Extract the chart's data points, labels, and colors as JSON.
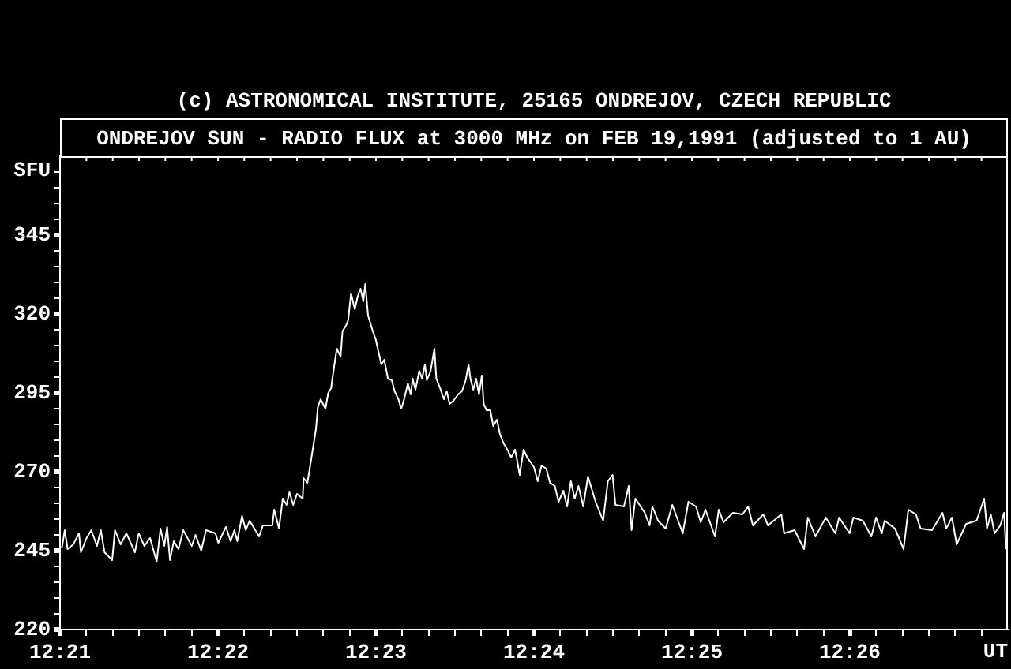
{
  "chart_data": {
    "type": "line",
    "title": "ONDREJOV SUN - RADIO FLUX at 3000 MHz on FEB 19,1991 (adjusted to 1 AU)",
    "annotations": [
      "(c) ASTRONOMICAL INSTITUTE, 25165 ONDREJOV, CZECH REPUBLIC"
    ],
    "xlabel": "UT",
    "ylabel": "SFU",
    "color": "#ffffff",
    "x": [
      12.3502,
      12.3505,
      12.3508,
      12.3514,
      12.352,
      12.3522,
      12.3528,
      12.3533,
      12.3539,
      12.3543,
      12.3547,
      12.3555,
      12.3558,
      12.3564,
      12.357,
      12.3579,
      12.3583,
      12.3589,
      12.3595,
      12.3602,
      12.3606,
      12.361,
      12.3613,
      12.3616,
      12.362,
      12.3625,
      12.363,
      12.3639,
      12.3643,
      12.3649,
      12.3654,
      12.3664,
      12.3667,
      12.3675,
      12.368,
      12.3684,
      12.3687,
      12.3692,
      12.3696,
      12.37,
      12.371,
      12.3714,
      12.3724,
      12.3726,
      12.3731,
      12.3735,
      12.3739,
      12.3742,
      12.3746,
      12.375,
      12.3756,
      12.3757,
      12.3761,
      12.3765,
      12.377,
      12.3772,
      12.3775,
      12.378,
      12.3783,
      12.3786,
      12.3789,
      12.3792,
      12.3796,
      12.3798,
      12.3802,
      12.3804,
      12.3807,
      12.3811,
      12.3814,
      12.3817,
      12.382,
      12.3822,
      12.3825,
      12.383,
      12.3833,
      12.3836,
      12.3839,
      12.3842,
      12.3846,
      12.385,
      12.3853,
      12.3857,
      12.386,
      12.3863,
      12.3867,
      12.387,
      12.3872,
      12.3875,
      12.3879,
      12.3882,
      12.3885,
      12.3887,
      12.3891,
      12.3895,
      12.3897,
      12.3901,
      12.3905,
      12.3908,
      12.3911,
      12.3915,
      12.392,
      12.3924,
      12.3928,
      12.3931,
      12.3933,
      12.3936,
      12.3939,
      12.3942,
      12.3945,
      12.3947,
      12.395,
      12.3954,
      12.3957,
      12.3961,
      12.3964,
      12.3968,
      12.3972,
      12.3976,
      12.398,
      12.3982,
      12.3985,
      12.3989,
      12.3993,
      12.4,
      12.4004,
      12.4008,
      12.4013,
      12.4017,
      12.4022,
      12.4026,
      12.4031,
      12.4035,
      12.4039,
      12.4043,
      12.4047,
      12.4052,
      12.4057,
      12.4065,
      12.4073,
      12.4078,
      12.4083,
      12.4086,
      12.4095,
      12.41,
      12.4103,
      12.4107,
      12.4117,
      12.4122,
      12.4125,
      12.4131,
      12.4139,
      12.4146,
      12.4157,
      12.4163,
      12.4171,
      12.4176,
      12.4181,
      12.4191,
      12.4195,
      12.42,
      12.421,
      12.422,
      12.4226,
      12.4231,
      12.4242,
      12.4247,
      12.4261,
      12.4264,
      12.4275,
      12.4285,
      12.4289,
      12.4297,
      12.4308,
      12.4318,
      12.4322,
      12.4333,
      12.4337,
      12.4347,
      12.4356,
      12.4361,
      12.4367,
      12.437,
      12.4381,
      12.439,
      12.4395,
      12.4403,
      12.4408,
      12.442,
      12.4431,
      12.4435,
      12.4441,
      12.4446,
      12.4456,
      12.4467,
      12.4471,
      12.4475,
      12.4478,
      12.4482,
      12.4486,
      12.4492,
      12.4496,
      12.4498
    ],
    "values": [
      246,
      251.5,
      245.5,
      247,
      250.5,
      244.5,
      249,
      251.5,
      246.5,
      251.5,
      244.5,
      242,
      251.5,
      247,
      250.5,
      244.5,
      250.5,
      246.5,
      249,
      241.5,
      252,
      246.5,
      252.5,
      242,
      248,
      245.5,
      251.5,
      246.5,
      250,
      245,
      251.5,
      250.5,
      247.5,
      252.5,
      248,
      251.5,
      248,
      256,
      251.5,
      254.5,
      249.5,
      253,
      253,
      258,
      252,
      261.5,
      259.5,
      263.5,
      259.5,
      263,
      261.5,
      268,
      266.5,
      274,
      283.5,
      290.5,
      293,
      290,
      295,
      296.5,
      303,
      309,
      306.5,
      314.5,
      316.5,
      318,
      326.5,
      321.5,
      325.5,
      328,
      324,
      329.5,
      319.5,
      314.5,
      312,
      308,
      304,
      305.5,
      299.5,
      299,
      295.5,
      293,
      290,
      293,
      298,
      294.5,
      299.5,
      296,
      302,
      299.5,
      304,
      299,
      302,
      309,
      299.5,
      296.5,
      293,
      295.5,
      291.5,
      292.5,
      294.5,
      295.5,
      299,
      304,
      299.5,
      296,
      299.5,
      294.5,
      300.5,
      291.5,
      289.5,
      289.5,
      284.5,
      286.5,
      282,
      279,
      277,
      274.5,
      277,
      274,
      269,
      277,
      274.5,
      271.5,
      267,
      272,
      271,
      266.5,
      265.5,
      260.5,
      264,
      259,
      267,
      261.5,
      265.5,
      259,
      268.5,
      260.5,
      254.5,
      267,
      269,
      259.5,
      259,
      265.5,
      251.5,
      261.5,
      257,
      253,
      259,
      254.5,
      252,
      259.5,
      250.5,
      260.5,
      259,
      254,
      258,
      249.5,
      258,
      254,
      257,
      256.5,
      259,
      253,
      256.5,
      253,
      256.5,
      250.5,
      251.5,
      245.5,
      255.5,
      249.5,
      255.5,
      250.5,
      255.5,
      250.5,
      255.5,
      254.5,
      249.5,
      255.5,
      250.5,
      254.5,
      252,
      245.5,
      258,
      256.5,
      252,
      251.5,
      257,
      252,
      255.5,
      247,
      253.5,
      254.5,
      258,
      261.5,
      252,
      256.5,
      250.5,
      253,
      257,
      245.5
    ],
    "xlim": [
      12.35,
      12.45
    ],
    "xticks": [
      {
        "value": 12.35,
        "label": "12:21"
      },
      {
        "value": 12.35278,
        "label": null
      },
      {
        "value": 12.35556,
        "label": null
      },
      {
        "value": 12.35833,
        "label": null
      },
      {
        "value": 12.36111,
        "label": null
      },
      {
        "value": 12.36389,
        "label": null
      },
      {
        "value": 12.36667,
        "label": "12:22"
      },
      {
        "value": 12.36944,
        "label": null
      },
      {
        "value": 12.37222,
        "label": null
      },
      {
        "value": 12.375,
        "label": null
      },
      {
        "value": 12.37778,
        "label": null
      },
      {
        "value": 12.38056,
        "label": null
      },
      {
        "value": 12.38333,
        "label": "12:23"
      },
      {
        "value": 12.38611,
        "label": null
      },
      {
        "value": 12.38889,
        "label": null
      },
      {
        "value": 12.39167,
        "label": null
      },
      {
        "value": 12.39444,
        "label": null
      },
      {
        "value": 12.39722,
        "label": null
      },
      {
        "value": 12.4,
        "label": "12:24"
      },
      {
        "value": 12.40278,
        "label": null
      },
      {
        "value": 12.40556,
        "label": null
      },
      {
        "value": 12.40833,
        "label": null
      },
      {
        "value": 12.41111,
        "label": null
      },
      {
        "value": 12.41389,
        "label": null
      },
      {
        "value": 12.41667,
        "label": "12:25"
      },
      {
        "value": 12.41944,
        "label": null
      },
      {
        "value": 12.42222,
        "label": null
      },
      {
        "value": 12.425,
        "label": null
      },
      {
        "value": 12.42778,
        "label": null
      },
      {
        "value": 12.43056,
        "label": null
      },
      {
        "value": 12.43333,
        "label": "12:26"
      },
      {
        "value": 12.43611,
        "label": null
      },
      {
        "value": 12.43889,
        "label": null
      },
      {
        "value": 12.44167,
        "label": null
      },
      {
        "value": 12.44444,
        "label": null
      },
      {
        "value": 12.44722,
        "label": null
      }
    ],
    "ylim": [
      220,
      370
    ],
    "yticks": [
      220,
      {
        "value": 225,
        "label": null
      },
      {
        "value": 230,
        "label": null
      },
      {
        "value": 235,
        "label": null
      },
      {
        "value": 240,
        "label": null
      },
      245,
      {
        "value": 250,
        "label": null
      },
      {
        "value": 255,
        "label": null
      },
      {
        "value": 260,
        "label": null
      },
      {
        "value": 265,
        "label": null
      },
      270,
      {
        "value": 275,
        "label": null
      },
      {
        "value": 280,
        "label": null
      },
      {
        "value": 285,
        "label": null
      },
      {
        "value": 290,
        "label": null
      },
      295,
      {
        "value": 300,
        "label": null
      },
      {
        "value": 305,
        "label": null
      },
      {
        "value": 310,
        "label": null
      },
      {
        "value": 315,
        "label": null
      },
      320,
      {
        "value": 325,
        "label": null
      },
      {
        "value": 330,
        "label": null
      },
      {
        "value": 335,
        "label": null
      },
      {
        "value": 340,
        "label": null
      },
      345,
      {
        "value": 350,
        "label": null
      },
      {
        "value": 355,
        "label": null
      },
      {
        "value": 360,
        "label": null
      },
      {
        "value": 365,
        "label": null
      }
    ]
  }
}
